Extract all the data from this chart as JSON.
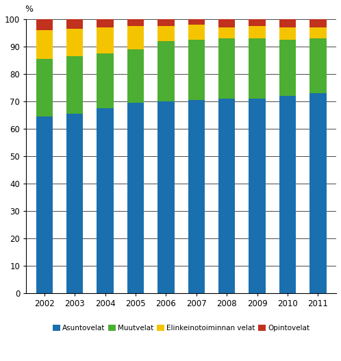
{
  "years": [
    "2002",
    "2003",
    "2004",
    "2005",
    "2006",
    "2007",
    "2008",
    "2009",
    "2010",
    "2011"
  ],
  "asuntovelat": [
    64.5,
    65.5,
    67.5,
    69.5,
    70.0,
    70.5,
    71.0,
    71.0,
    72.0,
    73.0
  ],
  "muutvelat": [
    21.0,
    21.0,
    20.0,
    19.5,
    22.0,
    22.0,
    22.0,
    22.0,
    20.5,
    20.0
  ],
  "elinkeinovelat": [
    10.5,
    10.0,
    9.5,
    8.5,
    5.5,
    5.5,
    4.0,
    4.5,
    4.5,
    4.0
  ],
  "opintovelat": [
    4.0,
    3.5,
    3.0,
    2.5,
    2.5,
    2.0,
    3.0,
    2.5,
    3.0,
    3.0
  ],
  "colors": {
    "asuntovelat": "#1a6faf",
    "muutvelat": "#4cae32",
    "elinkeinovelat": "#f5c400",
    "opintovelat": "#c0311e"
  },
  "legend_labels": [
    "Asuntovelat",
    "Muutvelat",
    "Elinkeinotoiminnan velat",
    "Opintovelat"
  ],
  "ylabel": "%",
  "ylim": [
    0,
    100
  ],
  "yticks": [
    0,
    10,
    20,
    30,
    40,
    50,
    60,
    70,
    80,
    90,
    100
  ],
  "bar_width": 0.55
}
